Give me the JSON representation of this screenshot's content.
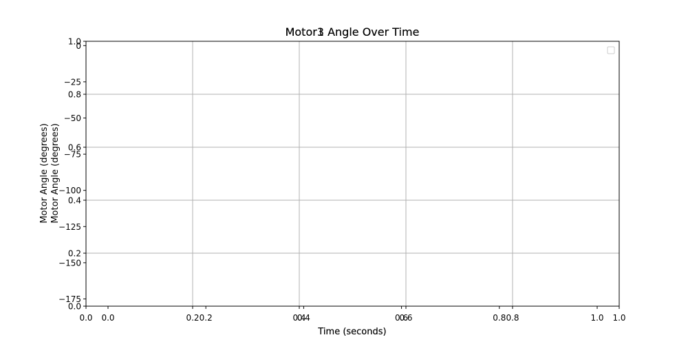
{
  "chart_data": [
    {
      "type": "line",
      "title": "Motor3 Angle Over Time",
      "xlabel": "Time (seconds)",
      "ylabel": "Motor Angle (degrees)",
      "xlim": [
        0.0,
        1.0
      ],
      "ylim": [
        0.0,
        1.0
      ],
      "xticks": [
        "0.0",
        "0.2",
        "0.4",
        "0.6",
        "0.8",
        "1.0"
      ],
      "yticks": [
        "0.0",
        "0.2",
        "0.4",
        "0.6",
        "0.8",
        "1.0"
      ],
      "grid": true,
      "legend": "top-right",
      "series": []
    },
    {
      "type": "line",
      "title": "Motor1 Angle Over Time",
      "xlabel": "Time (seconds)",
      "ylabel": "Motor Angle (degrees)",
      "xlim": [
        -0.045,
        1.045
      ],
      "ylim": [
        -180,
        3
      ],
      "xticks": [
        "0.0",
        "0.2",
        "0.4",
        "0.6",
        "0.8",
        "1.0"
      ],
      "yticks": [
        "0",
        "−25",
        "−50",
        "−75",
        "−100",
        "−125",
        "−150",
        "−175"
      ],
      "grid": false,
      "series": []
    }
  ],
  "colors": {
    "axis": "#000000",
    "grid": "#b0b0b0",
    "legend_border": "#cccccc"
  }
}
